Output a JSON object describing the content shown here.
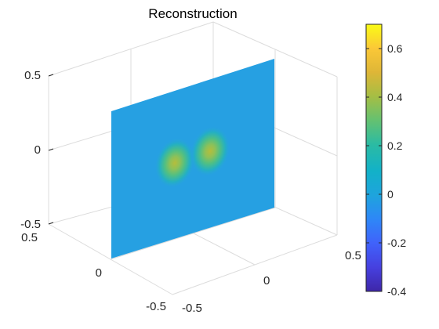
{
  "chart_data": {
    "type": "surface3d",
    "title": "Reconstruction",
    "xlabel": "",
    "ylabel": "",
    "zlabel": "",
    "xlim": [
      -0.5,
      0.5
    ],
    "ylim": [
      -0.5,
      0.5
    ],
    "zlim": [
      -0.5,
      0.5
    ],
    "x_ticks": [
      "-0.5",
      "0",
      "0.5"
    ],
    "y_ticks": [
      "-0.5",
      "0",
      "0.5"
    ],
    "z_ticks": [
      "-0.5",
      "0",
      "0.5"
    ],
    "slice": {
      "plane": "x = 0",
      "background_value": 0.0,
      "blobs": [
        {
          "y": -0.08,
          "z": 0.0,
          "peak": 0.42
        },
        {
          "y": 0.12,
          "z": 0.0,
          "peak": 0.4
        }
      ]
    },
    "colorbar": {
      "colormap": "parula",
      "range": [
        -0.4,
        0.7
      ],
      "ticks": [
        "-0.4",
        "-0.2",
        "0",
        "0.2",
        "0.4",
        "0.6"
      ]
    },
    "grid": true,
    "box": true
  }
}
